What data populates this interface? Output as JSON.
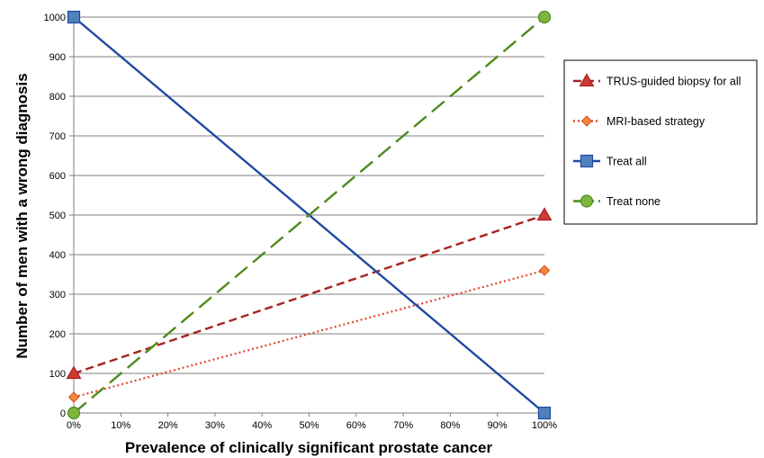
{
  "chart_data": {
    "type": "line",
    "title": "",
    "xlabel": "Prevalence of clinically significant prostate cancer",
    "ylabel": "Number of men with a wrong diagnosis",
    "x_ticks": [
      "0%",
      "10%",
      "20%",
      "30%",
      "40%",
      "50%",
      "60%",
      "70%",
      "80%",
      "90%",
      "100%"
    ],
    "y_ticks": [
      "0",
      "100",
      "200",
      "300",
      "400",
      "500",
      "600",
      "700",
      "800",
      "900",
      "1000"
    ],
    "xlim": [
      0,
      100
    ],
    "ylim": [
      0,
      1000
    ],
    "grid": "horizontal",
    "legend_position": "right",
    "series": [
      {
        "name": "TRUS-guided biopsy for all",
        "x": [
          0,
          100
        ],
        "y": [
          100,
          500
        ],
        "color": "#a8221f",
        "line_style": "dashed",
        "marker": "triangle",
        "marker_color": "#cd3a33"
      },
      {
        "name": "MRI-based strategy",
        "x": [
          0,
          100
        ],
        "y": [
          40,
          360
        ],
        "color": "#e0472a",
        "line_style": "dotted",
        "marker": "diamond",
        "marker_color": "#f08a3a"
      },
      {
        "name": "Treat all",
        "x": [
          0,
          100
        ],
        "y": [
          1000,
          0
        ],
        "color": "#1f4aa2",
        "line_style": "solid",
        "marker": "square",
        "marker_color": "#4f81bd"
      },
      {
        "name": "Treat none",
        "x": [
          0,
          100
        ],
        "y": [
          0,
          1000
        ],
        "color": "#4e8a1c",
        "line_style": "long-dash",
        "marker": "circle",
        "marker_color": "#7fb53f"
      }
    ]
  }
}
